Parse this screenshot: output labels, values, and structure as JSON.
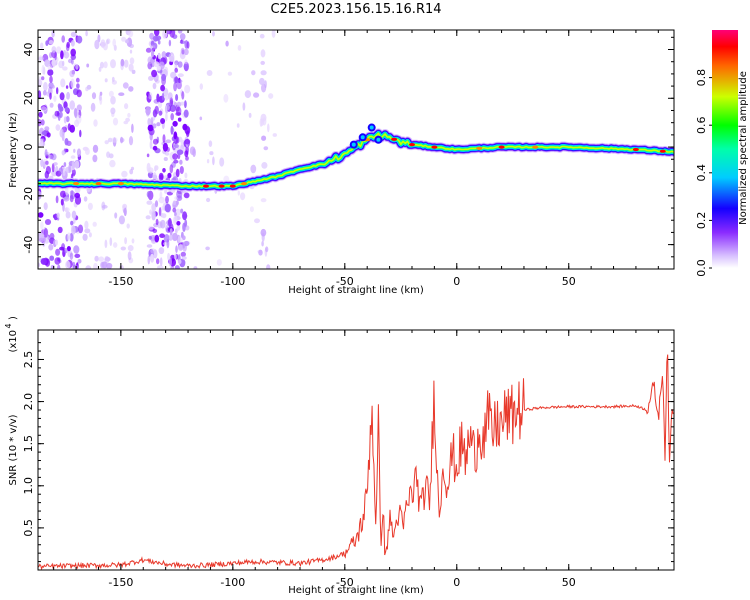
{
  "title": "C2E5.2023.156.15.16.R14",
  "chart_data": [
    {
      "type": "heatmap",
      "xlabel": "Height of straight line (km)",
      "ylabel": "Frequency (Hz)",
      "xlim": [
        -187,
        97
      ],
      "ylim": [
        -50,
        48
      ],
      "xticks": [
        -150,
        -100,
        -50,
        0,
        50
      ],
      "yticks": [
        -40,
        -20,
        0,
        20,
        40
      ],
      "colorbar": {
        "label": "Normalized spectral amplitude",
        "range": [
          0,
          1
        ],
        "ticks": [
          0.0,
          0.2,
          0.4,
          0.6,
          0.8
        ],
        "colormap": [
          "#ffffff",
          "#c8a2ff",
          "#7a00ff",
          "#0000ff",
          "#00ccff",
          "#00ff88",
          "#00ff00",
          "#ccff00",
          "#ff8800",
          "#ff0000",
          "#ff0066"
        ]
      },
      "ridge": {
        "x": [
          -187,
          -150,
          -120,
          -100,
          -90,
          -80,
          -70,
          -60,
          -50,
          -45,
          -40,
          -35,
          -30,
          -25,
          -20,
          -10,
          0,
          20,
          50,
          80,
          97
        ],
        "y": [
          -15,
          -15,
          -16,
          -16,
          -14,
          -12,
          -9,
          -7,
          -3,
          0,
          3,
          5,
          4,
          2,
          1,
          0,
          -1,
          0,
          0,
          -1,
          -2
        ]
      }
    },
    {
      "type": "line",
      "xlabel": "Height of straight line (km)",
      "ylabel": "SNR (10 * v/v)",
      "yscale_label": "(x10",
      "yscale_exp": "4",
      "xlim": [
        -187,
        97
      ],
      "ylim": [
        0,
        2.85
      ],
      "xticks": [
        -150,
        -100,
        -50,
        0,
        50
      ],
      "yticks": [
        0.5,
        1.0,
        1.5,
        2.0,
        2.5
      ],
      "ytick_labels": [
        "0.5",
        "1.0",
        "1.5",
        "2.0",
        "2.5"
      ],
      "color": "#e8392b",
      "series": [
        {
          "x": [
            -187,
            -170,
            -150,
            -140,
            -130,
            -120,
            -110,
            -100,
            -90,
            -80,
            -70,
            -60,
            -55,
            -50,
            -45,
            -42,
            -40,
            -38,
            -36,
            -35,
            -34,
            -33,
            -32,
            -30,
            -28,
            -26,
            -24,
            -22,
            -20,
            -18,
            -16,
            -14,
            -12,
            -10,
            -8,
            -6,
            -4,
            -2,
            0,
            2,
            4,
            6,
            8,
            10,
            12,
            14,
            16,
            18,
            20,
            22,
            24,
            26,
            28,
            30,
            35,
            40,
            50,
            60,
            70,
            80,
            85,
            88,
            90,
            92,
            93,
            94,
            95,
            96,
            97
          ],
          "y": [
            0.04,
            0.05,
            0.06,
            0.12,
            0.07,
            0.05,
            0.06,
            0.08,
            0.1,
            0.09,
            0.08,
            0.12,
            0.15,
            0.2,
            0.35,
            0.6,
            0.9,
            2.0,
            0.5,
            1.7,
            0.3,
            0.8,
            0.1,
            0.6,
            0.4,
            0.7,
            0.5,
            0.8,
            0.9,
            1.1,
            0.7,
            1.0,
            0.8,
            2.2,
            0.6,
            1.3,
            1.0,
            1.4,
            1.2,
            1.5,
            1.3,
            1.6,
            1.35,
            1.7,
            1.55,
            1.8,
            1.6,
            1.75,
            1.7,
            1.85,
            1.8,
            1.88,
            1.9,
            1.9,
            1.92,
            1.93,
            1.94,
            1.94,
            1.94,
            1.95,
            1.9,
            2.2,
            1.8,
            2.4,
            1.3,
            2.8,
            1.2,
            1.9,
            1.93
          ]
        }
      ]
    }
  ]
}
